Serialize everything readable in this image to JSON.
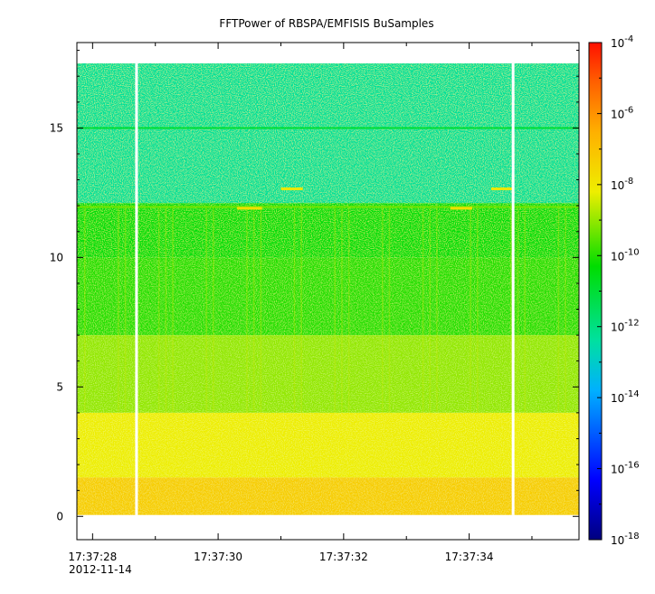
{
  "chart_data": {
    "type": "heatmap",
    "title": "FFTPower of RBSPA/EMFISIS  BuSamples",
    "xlabel": "",
    "ylabel": "",
    "x_axis": {
      "kind": "time",
      "date_label": "2012-11-14",
      "range": [
        "17:37:27.75",
        "17:37:35.75"
      ],
      "major_ticks": [
        "17:37:28",
        "17:37:30",
        "17:37:32",
        "17:37:34"
      ],
      "minor_ticks": [
        "17:37:29",
        "17:37:31",
        "17:37:33",
        "17:37:35"
      ]
    },
    "y_axis": {
      "range": [
        -0.9,
        18.3
      ],
      "ticks": [
        0,
        5,
        10,
        15
      ]
    },
    "colorbar": {
      "scale": "log",
      "range_exponent": [
        -18,
        -4
      ],
      "tick_base": "10",
      "tick_exponents": [
        "-4",
        "-6",
        "-8",
        "-10",
        "-12",
        "-14",
        "-16",
        "-18"
      ],
      "colormap": [
        "#00007f",
        "#0000ff",
        "#00ffff",
        "#00ff00",
        "#ffff00",
        "#ff8000",
        "#ff0000"
      ]
    },
    "spectrogram": {
      "data_y_top": 17.5,
      "data_y_bottom": 0.05,
      "gaps": [
        "17:37:28.7",
        "17:37:34.7"
      ],
      "bands": [
        {
          "y_from": 12.1,
          "y_to": 17.5,
          "log_power": -12.3
        },
        {
          "y_from": 10.0,
          "y_to": 12.1,
          "log_power": -10.5
        },
        {
          "y_from": 7.0,
          "y_to": 10.0,
          "log_power": -10.0
        },
        {
          "y_from": 4.0,
          "y_to": 7.0,
          "log_power": -9.0
        },
        {
          "y_from": 1.5,
          "y_to": 4.0,
          "log_power": -8.2
        },
        {
          "y_from": 0.05,
          "y_to": 1.5,
          "log_power": -7.3
        }
      ],
      "features": [
        {
          "name": "line-15",
          "y": 15.0,
          "log_power": -11.0,
          "t_from": "17:37:27.75",
          "t_to": "17:37:35.75"
        },
        {
          "name": "line-12",
          "y": 11.95,
          "log_power": -9.3,
          "t_from": "17:37:27.75",
          "t_to": "17:37:35.75"
        },
        {
          "name": "whistler-a",
          "y": 12.65,
          "log_power": -8.0,
          "t_from": "17:37:31.0",
          "t_to": "17:37:31.35"
        },
        {
          "name": "whistler-b",
          "y": 11.9,
          "log_power": -7.8,
          "t_from": "17:37:30.3",
          "t_to": "17:37:30.7"
        },
        {
          "name": "whistler-c",
          "y": 12.65,
          "log_power": -8.0,
          "t_from": "17:37:34.35",
          "t_to": "17:37:34.7"
        },
        {
          "name": "whistler-d",
          "y": 11.9,
          "log_power": -7.8,
          "t_from": "17:37:33.7",
          "t_to": "17:37:34.05"
        }
      ]
    }
  }
}
